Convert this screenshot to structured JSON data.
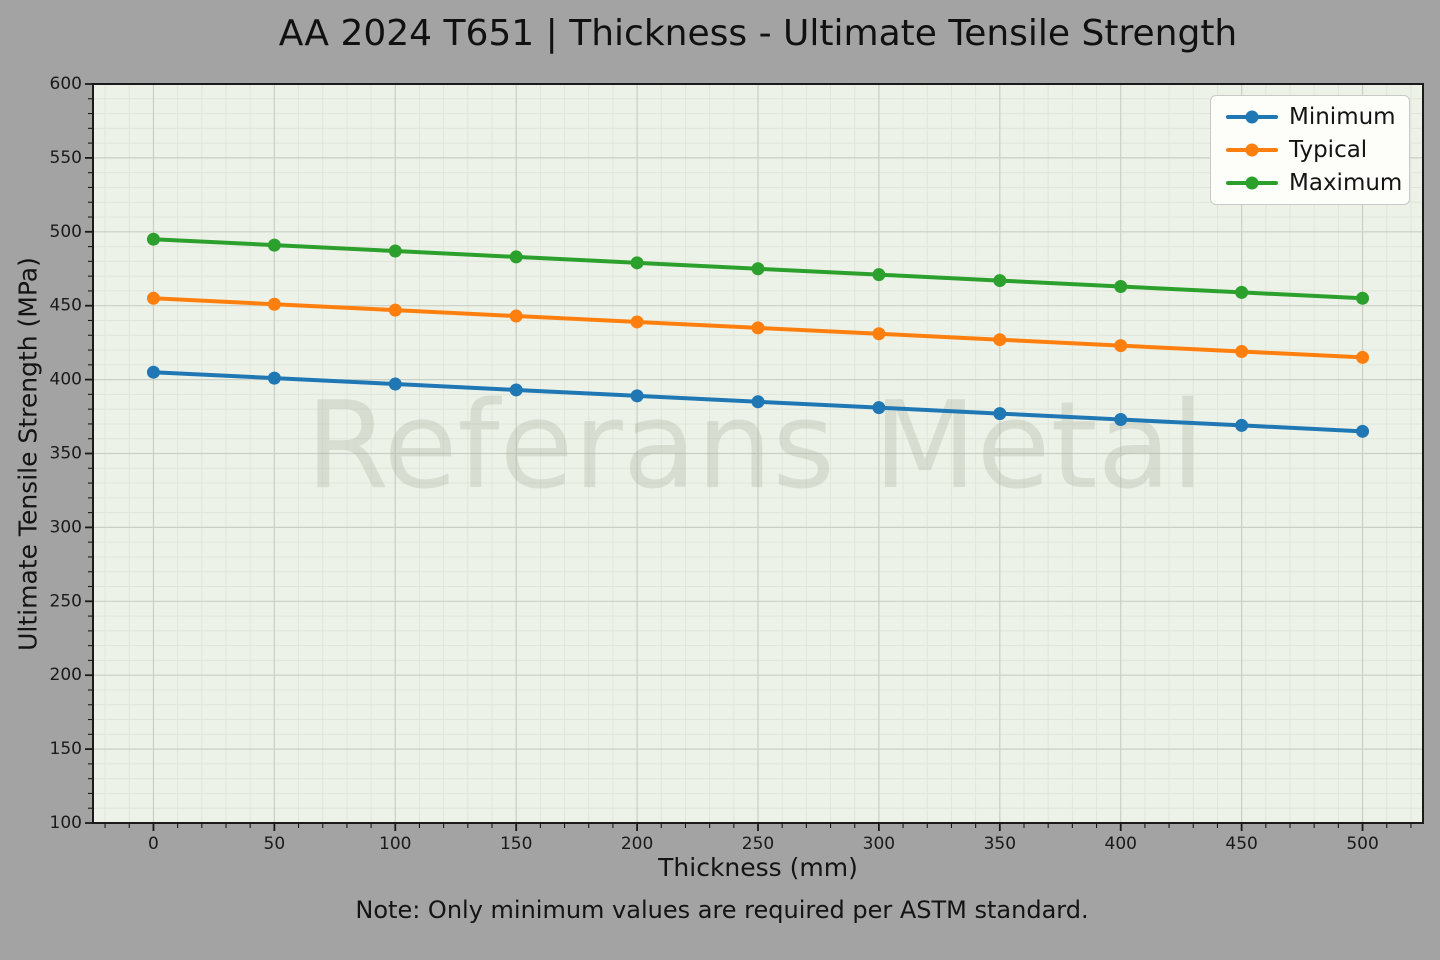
{
  "chart_data": {
    "type": "line",
    "title": "AA 2024 T651 | Thickness - Ultimate Tensile Strength",
    "xlabel": "Thickness (mm)",
    "ylabel": "Ultimate Tensile Strength (MPa)",
    "note": "Note: Only minimum values are required per ASTM standard.",
    "watermark": "Referans Metal",
    "x": [
      0,
      50,
      100,
      150,
      200,
      250,
      300,
      350,
      400,
      450,
      500
    ],
    "series": [
      {
        "name": "Minimum",
        "color": "#1f77b4",
        "values": [
          405,
          401,
          397,
          393,
          389,
          385,
          381,
          377,
          373,
          369,
          365
        ]
      },
      {
        "name": "Typical",
        "color": "#ff7f0e",
        "values": [
          455,
          451,
          447,
          443,
          439,
          435,
          431,
          427,
          423,
          419,
          415
        ]
      },
      {
        "name": "Maximum",
        "color": "#2ca02c",
        "values": [
          495,
          491,
          487,
          483,
          479,
          475,
          471,
          467,
          463,
          459,
          455
        ]
      }
    ],
    "xlim": [
      -25,
      525
    ],
    "ylim": [
      100,
      600
    ],
    "x_ticks": [
      0,
      50,
      100,
      150,
      200,
      250,
      300,
      350,
      400,
      450,
      500
    ],
    "y_ticks": [
      100,
      150,
      200,
      250,
      300,
      350,
      400,
      450,
      500,
      550,
      600
    ],
    "minor_tick_step": 10,
    "grid": true,
    "legend_position": "upper right",
    "colors": {
      "figure_bg": "#a3a3a3",
      "plot_bg": "#edf2e8",
      "grid_major": "#c9cfc4",
      "grid_minor": "#e0e5da",
      "axis": "#1a1a1a",
      "watermark": "#aab0a2"
    }
  }
}
